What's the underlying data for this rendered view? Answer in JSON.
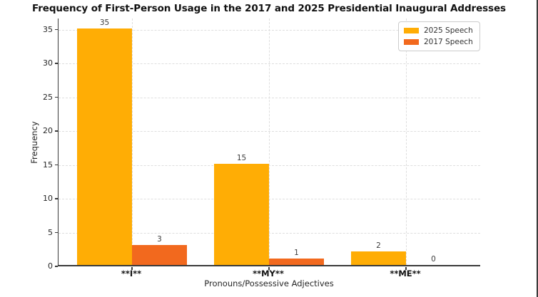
{
  "title": "Frequency of First-Person Usage in the 2017 and 2025 Presidential Inaugural Addresses",
  "chart_data": {
    "type": "bar",
    "categories": [
      "**I**",
      "**MY**",
      "**ME**"
    ],
    "series": [
      {
        "name": "2025 Speech",
        "color": "#FFAD05",
        "values": [
          35,
          15,
          2
        ]
      },
      {
        "name": "2017 Speech",
        "color": "#F2691E",
        "values": [
          3,
          1,
          0
        ]
      }
    ],
    "xlabel": "Pronouns/Possessive Adjectives",
    "ylabel": "Frequency",
    "yticks": [
      0,
      5,
      10,
      15,
      20,
      25,
      30,
      35
    ],
    "ylim": [
      0,
      36.65
    ],
    "grid": "both, dashed light-gray",
    "legend_position": "upper right inside plot",
    "bar_value_labels": [
      [
        35,
        15,
        2
      ],
      [
        3,
        1,
        0
      ]
    ]
  },
  "colors": {
    "series_2025": "#FFAD05",
    "series_2017": "#F2691E",
    "gridline": "#dedede",
    "axis": "#3a3a3a",
    "text": "#262626"
  }
}
